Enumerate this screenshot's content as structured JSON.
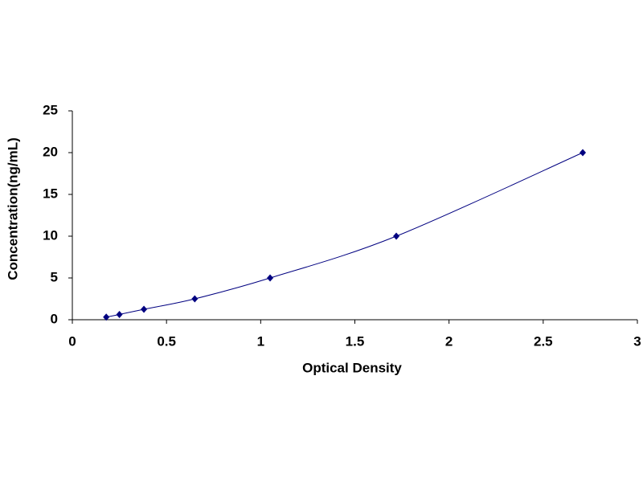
{
  "chart_data": {
    "type": "scatter",
    "x_label": "Optical Density",
    "y_label": "Concentration(ng/mL)",
    "x": [
      0.18,
      0.25,
      0.38,
      0.65,
      1.05,
      1.72,
      2.71
    ],
    "values": [
      0.31,
      0.63,
      1.25,
      2.5,
      5,
      10,
      20
    ],
    "color": "#000080",
    "smooth_line": true,
    "xlim": [
      0,
      3
    ],
    "xticks": [
      0,
      0.5,
      1,
      1.5,
      2,
      2.5,
      3
    ],
    "ylim": [
      0,
      25
    ],
    "yticks": [
      0,
      5,
      10,
      15,
      20,
      25
    ]
  }
}
